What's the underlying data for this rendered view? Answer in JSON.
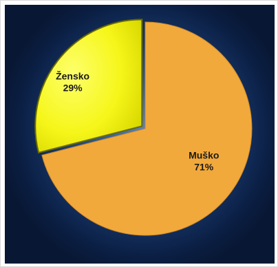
{
  "chart_data": {
    "type": "pie",
    "categories": [
      "Muško",
      "Žensko"
    ],
    "values": [
      71,
      29
    ],
    "labels": [
      "71%",
      "29%"
    ],
    "colors": [
      "#F2A93B",
      "#FFFF1A"
    ],
    "title": "",
    "legend": "none",
    "background": "#17386a"
  }
}
